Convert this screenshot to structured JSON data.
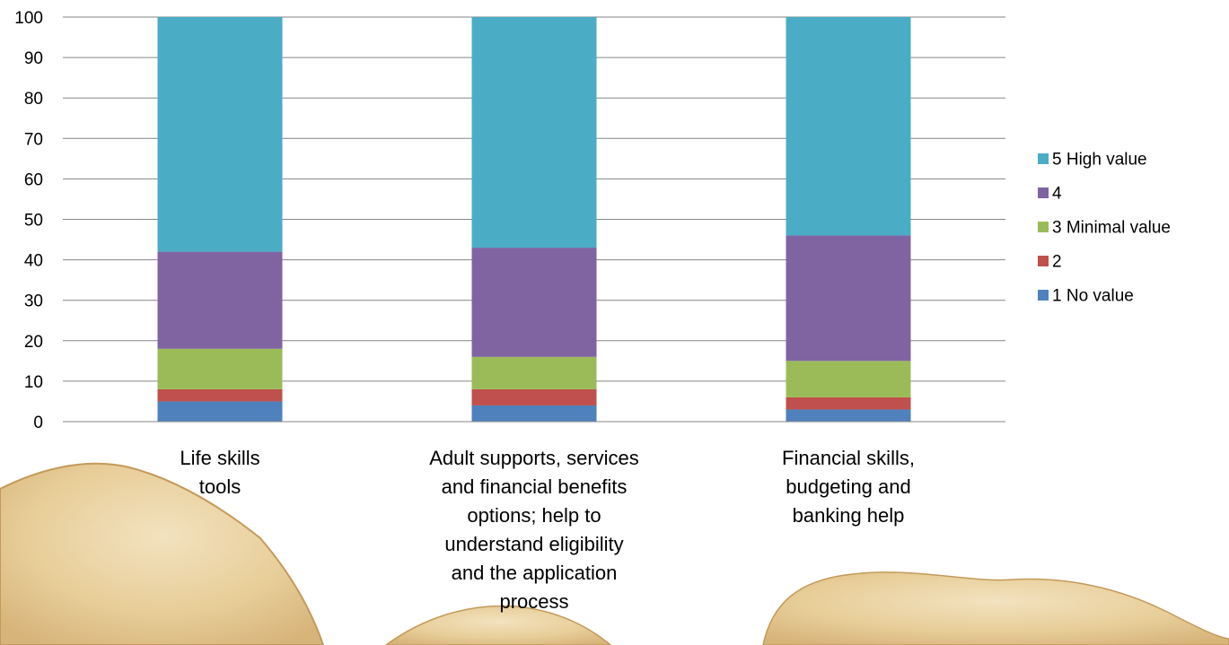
{
  "chart_data": {
    "type": "bar",
    "stacked": true,
    "categories": [
      "Life skills tools",
      "Adult supports, services and financial benefits options; help to understand eligibility and the application process",
      "Financial skills, budgeting and banking help"
    ],
    "category_lines": [
      [
        "Life skills",
        "tools"
      ],
      [
        "Adult supports, services",
        "and financial benefits",
        "options; help to",
        "understand eligibility",
        "and the application",
        "process"
      ],
      [
        "Financial skills,",
        "budgeting and",
        "banking help"
      ]
    ],
    "series": [
      {
        "name": "1 No value",
        "color": "#4f81bd",
        "values": [
          5,
          4,
          3
        ]
      },
      {
        "name": "2",
        "color": "#c0504d",
        "values": [
          3,
          4,
          3
        ]
      },
      {
        "name": "3 Minimal value",
        "color": "#9bbb59",
        "values": [
          10,
          8,
          9
        ]
      },
      {
        "name": "4",
        "color": "#8064a2",
        "values": [
          24,
          27,
          31
        ]
      },
      {
        "name": "5 High value",
        "color": "#4bacc6",
        "values": [
          58,
          57,
          54
        ]
      }
    ],
    "ylim": [
      0,
      100
    ],
    "yticks": [
      0,
      10,
      20,
      30,
      40,
      50,
      60,
      70,
      80,
      90,
      100
    ],
    "grid": true,
    "legend_position": "right",
    "title": "",
    "xlabel": "",
    "ylabel": ""
  }
}
